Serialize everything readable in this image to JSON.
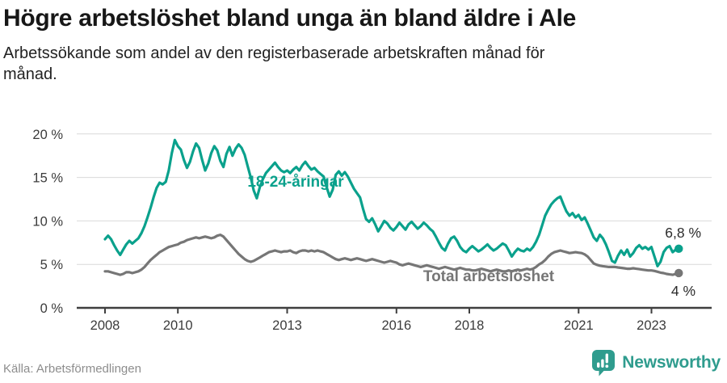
{
  "header": {
    "title": "Högre arbetslöshet bland unga än bland äldre i Ale",
    "subtitle": "Arbetssökande som andel av den registerbaserade arbetskraften månad för månad."
  },
  "chart_data": {
    "type": "line",
    "title": "Högre arbetslöshet bland unga än bland äldre i Ale",
    "subtitle": "Arbetssökande som andel av den registerbaserade arbetskraften månad för månad.",
    "unit": "%",
    "x_start": "2008-01",
    "x_end": "2023-10",
    "frequency": "monthly",
    "grid": true,
    "ylim": [
      0,
      20
    ],
    "y_axis": {
      "ticks": [
        {
          "value": 0,
          "label": "0 %"
        },
        {
          "value": 5,
          "label": "5 %"
        },
        {
          "value": 10,
          "label": "10 %"
        },
        {
          "value": 15,
          "label": "15 %"
        },
        {
          "value": 20,
          "label": "20 %"
        }
      ]
    },
    "x_axis": {
      "ticks": [
        {
          "year": 2008,
          "label": "2008"
        },
        {
          "year": 2010,
          "label": "2010"
        },
        {
          "year": 2013,
          "label": "2013"
        },
        {
          "year": 2016,
          "label": "2016"
        },
        {
          "year": 2018,
          "label": "2018"
        },
        {
          "year": 2021,
          "label": "2021"
        },
        {
          "year": 2023,
          "label": "2023"
        }
      ]
    },
    "series": [
      {
        "id": "youth",
        "name": "18-24-åringar",
        "color": "#0aa18c",
        "end_label": "6,8 %",
        "end_value": 6.8,
        "values": [
          7.9,
          8.3,
          7.9,
          7.2,
          6.6,
          6.1,
          6.7,
          7.3,
          7.7,
          7.4,
          7.7,
          8.0,
          8.6,
          9.4,
          10.4,
          11.5,
          12.7,
          13.8,
          14.4,
          14.2,
          14.5,
          15.8,
          17.8,
          19.3,
          18.6,
          18.2,
          17.0,
          16.1,
          16.8,
          18.0,
          18.9,
          18.4,
          17.0,
          15.8,
          16.6,
          17.8,
          18.6,
          18.1,
          16.9,
          16.2,
          17.7,
          18.5,
          17.5,
          18.3,
          18.8,
          18.4,
          17.6,
          16.3,
          15.0,
          13.5,
          12.6,
          13.9,
          14.8,
          15.5,
          15.9,
          16.3,
          16.7,
          16.2,
          15.8,
          15.6,
          15.8,
          15.5,
          15.9,
          16.2,
          15.8,
          16.4,
          16.8,
          16.3,
          15.9,
          16.1,
          15.7,
          15.4,
          15.1,
          13.9,
          12.8,
          13.6,
          15.3,
          15.7,
          15.2,
          15.6,
          15.1,
          14.4,
          13.7,
          13.2,
          12.7,
          11.4,
          10.2,
          9.9,
          10.3,
          9.6,
          8.8,
          9.4,
          10.0,
          9.7,
          9.2,
          8.9,
          9.3,
          9.8,
          9.4,
          9.0,
          9.6,
          9.9,
          9.5,
          9.1,
          9.4,
          9.8,
          9.5,
          9.1,
          8.8,
          8.2,
          7.5,
          6.9,
          6.6,
          7.4,
          8.0,
          8.2,
          7.7,
          7.0,
          6.6,
          6.4,
          6.8,
          7.1,
          6.8,
          6.5,
          6.7,
          7.0,
          7.3,
          6.9,
          6.6,
          6.8,
          7.1,
          7.4,
          7.2,
          6.6,
          5.9,
          6.4,
          6.8,
          6.6,
          6.5,
          6.8,
          6.6,
          7.0,
          7.6,
          8.4,
          9.5,
          10.6,
          11.3,
          11.9,
          12.3,
          12.6,
          12.8,
          11.9,
          11.1,
          10.6,
          10.9,
          10.4,
          10.7,
          10.1,
          10.4,
          9.7,
          8.9,
          8.1,
          7.7,
          8.4,
          8.0,
          7.3,
          6.4,
          5.4,
          5.2,
          6.0,
          6.6,
          6.1,
          6.7,
          5.9,
          6.3,
          6.9,
          7.2,
          6.8,
          7.0,
          6.7,
          7.0,
          5.9,
          4.8,
          5.3,
          6.4,
          6.9,
          7.1,
          6.4,
          6.7,
          6.8
        ]
      },
      {
        "id": "total",
        "name": "Total arbetslöshet",
        "color": "#767676",
        "end_label": "4 %",
        "end_value": 4.0,
        "values": [
          4.2,
          4.2,
          4.1,
          4.0,
          3.9,
          3.8,
          3.9,
          4.1,
          4.1,
          4.0,
          4.1,
          4.2,
          4.4,
          4.7,
          5.1,
          5.5,
          5.8,
          6.1,
          6.4,
          6.6,
          6.8,
          7.0,
          7.1,
          7.2,
          7.3,
          7.5,
          7.6,
          7.8,
          7.9,
          8.0,
          8.1,
          8.0,
          8.1,
          8.2,
          8.1,
          8.0,
          8.1,
          8.3,
          8.4,
          8.2,
          7.8,
          7.4,
          7.0,
          6.6,
          6.2,
          5.9,
          5.6,
          5.4,
          5.3,
          5.4,
          5.6,
          5.8,
          6.0,
          6.2,
          6.4,
          6.5,
          6.6,
          6.5,
          6.4,
          6.5,
          6.5,
          6.6,
          6.4,
          6.3,
          6.5,
          6.6,
          6.6,
          6.5,
          6.6,
          6.5,
          6.6,
          6.5,
          6.4,
          6.2,
          6.0,
          5.8,
          5.6,
          5.5,
          5.6,
          5.7,
          5.6,
          5.5,
          5.6,
          5.7,
          5.6,
          5.5,
          5.4,
          5.5,
          5.6,
          5.5,
          5.4,
          5.3,
          5.2,
          5.3,
          5.4,
          5.3,
          5.2,
          5.0,
          4.9,
          5.0,
          5.1,
          5.0,
          4.9,
          4.8,
          4.7,
          4.8,
          4.9,
          4.8,
          4.7,
          4.6,
          4.5,
          4.6,
          4.7,
          4.6,
          4.5,
          4.4,
          4.5,
          4.6,
          4.5,
          4.4,
          4.4,
          4.3,
          4.3,
          4.4,
          4.5,
          4.4,
          4.3,
          4.2,
          4.3,
          4.4,
          4.3,
          4.2,
          4.2,
          4.3,
          4.2,
          4.3,
          4.4,
          4.3,
          4.4,
          4.5,
          4.4,
          4.5,
          4.7,
          5.0,
          5.2,
          5.5,
          5.9,
          6.2,
          6.4,
          6.5,
          6.6,
          6.5,
          6.4,
          6.3,
          6.35,
          6.4,
          6.35,
          6.3,
          6.15,
          5.9,
          5.5,
          5.1,
          4.95,
          4.85,
          4.8,
          4.75,
          4.7,
          4.7,
          4.7,
          4.65,
          4.6,
          4.55,
          4.5,
          4.5,
          4.55,
          4.5,
          4.45,
          4.4,
          4.35,
          4.3,
          4.3,
          4.25,
          4.15,
          4.05,
          4.0,
          3.9,
          3.85,
          3.8,
          3.9,
          4.0
        ]
      }
    ]
  },
  "footer": {
    "source": "Källa: Arbetsförmedlingen",
    "brand": "Newsworthy"
  },
  "colors": {
    "accent_teal": "#0aa18c",
    "line_gray": "#767676",
    "brand_teal": "#2f9c8e",
    "gridline": "#d9d9d9",
    "axis": "#3f3f3f"
  }
}
